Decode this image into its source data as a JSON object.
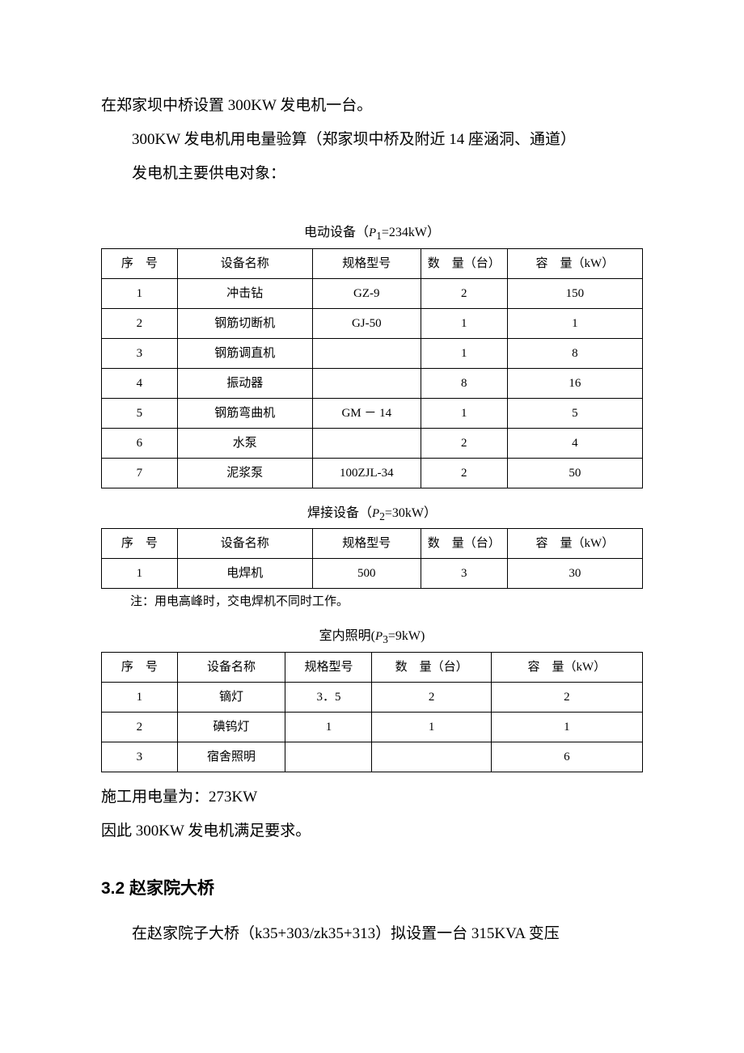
{
  "colors": {
    "text": "#000000",
    "background": "#ffffff",
    "border": "#000000"
  },
  "typography": {
    "body_family": "SimSun",
    "body_size_pt": 15,
    "heading_family": "SimHei",
    "heading_size_pt": 16
  },
  "intro": {
    "p1": "在郑家坝中桥设置 300KW 发电机一台。",
    "p2": "300KW 发电机用电量验算（郑家坝中桥及附近 14 座涵洞、通道）",
    "p3": "发电机主要供电对象："
  },
  "table_headers": {
    "seq": "序　号",
    "name": "设备名称",
    "model": "规格型号",
    "qty": "数　量（台）",
    "cap": "容　量（kW）"
  },
  "table1": {
    "caption_prefix": "电动设备（",
    "caption_var": "P",
    "caption_sub": "1",
    "caption_suffix": "=234kW）",
    "rows": [
      {
        "seq": "1",
        "name": "冲击钻",
        "model": "GZ-9",
        "qty": "2",
        "cap": "150"
      },
      {
        "seq": "2",
        "name": "钢筋切断机",
        "model": "GJ-50",
        "qty": "1",
        "cap": "1"
      },
      {
        "seq": "3",
        "name": "钢筋调直机",
        "model": "",
        "qty": "1",
        "cap": "8"
      },
      {
        "seq": "4",
        "name": "振动器",
        "model": "",
        "qty": "8",
        "cap": "16"
      },
      {
        "seq": "5",
        "name": "钢筋弯曲机",
        "model": "GM － 14",
        "qty": "1",
        "cap": "5"
      },
      {
        "seq": "6",
        "name": "水泵",
        "model": "",
        "qty": "2",
        "cap": "4"
      },
      {
        "seq": "7",
        "name": "泥浆泵",
        "model": "100ZJL-34",
        "qty": "2",
        "cap": "50"
      }
    ]
  },
  "table2": {
    "caption_prefix": "焊接设备（",
    "caption_var": "P",
    "caption_sub": "2",
    "caption_suffix": "=30kW）",
    "rows": [
      {
        "seq": "1",
        "name": "电焊机",
        "model": "500",
        "qty": "3",
        "cap": "30"
      }
    ],
    "note": "注：用电高峰时，交电焊机不同时工作。"
  },
  "table3": {
    "caption_prefix": "室内照明(",
    "caption_var": "P",
    "caption_sub": "3",
    "caption_suffix": "=9kW)",
    "rows": [
      {
        "seq": "1",
        "name": "镝灯",
        "model": "3．5",
        "qty": "2",
        "cap": "2"
      },
      {
        "seq": "2",
        "name": "碘钨灯",
        "model": "1",
        "qty": "1",
        "cap": "1"
      },
      {
        "seq": "3",
        "name": "宿舍照明",
        "model": "",
        "qty": "",
        "cap": "6"
      }
    ]
  },
  "conclusion": {
    "p1": "施工用电量为：273KW",
    "p2": "因此 300KW 发电机满足要求。"
  },
  "section": {
    "heading": "3.2 赵家院大桥",
    "p1": "在赵家院子大桥（k35+303/zk35+313）拟设置一台 315KVA 变压"
  }
}
